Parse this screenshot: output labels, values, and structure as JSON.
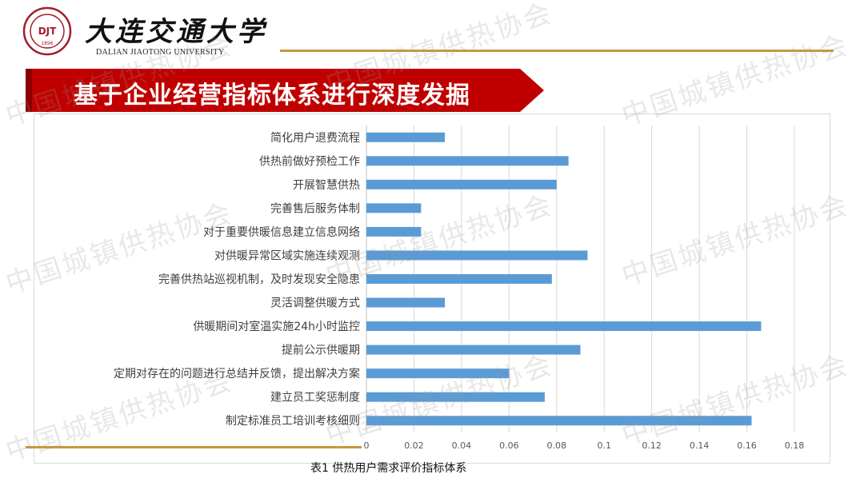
{
  "logo": {
    "seal_text": "1896",
    "seal_initials": "DJT",
    "name_cn": "大连交通大学",
    "name_en": "DALIAN JIAOTONG UNIVERSITY"
  },
  "banner": {
    "title": "基于企业经营指标体系进行深度发掘"
  },
  "watermark": {
    "text": "中国城镇供热协会"
  },
  "caption": "表1 供热用户需求评价指标体系",
  "colors": {
    "bar": "#5b9bd5",
    "banner": "#c00000",
    "accent_line": "#c79a3c"
  },
  "chart_data": {
    "type": "bar",
    "orientation": "horizontal",
    "categories": [
      "简化用户退费流程",
      "供热前做好预检工作",
      "开展智慧供热",
      "完善售后服务体制",
      "对于重要供暖信息建立信息网络",
      "对供暖异常区域实施连续观测",
      "完善供热站巡视机制，及时发现安全隐患",
      "灵活调整供暖方式",
      "供暖期间对室温实施24h小时监控",
      "提前公示供暖期",
      "定期对存在的问题进行总结并反馈，提出解决方案",
      "建立员工奖惩制度",
      "制定标准员工培训考核细则"
    ],
    "values": [
      0.033,
      0.085,
      0.08,
      0.023,
      0.023,
      0.093,
      0.078,
      0.033,
      0.166,
      0.09,
      0.06,
      0.075,
      0.162
    ],
    "xlim": [
      0,
      0.18
    ],
    "xticks": [
      "0",
      "0.02",
      "0.04",
      "0.06",
      "0.08",
      "0.1",
      "0.12",
      "0.14",
      "0.16",
      "0.18"
    ],
    "grid": "vertical",
    "title": "",
    "xlabel": "",
    "ylabel": ""
  }
}
